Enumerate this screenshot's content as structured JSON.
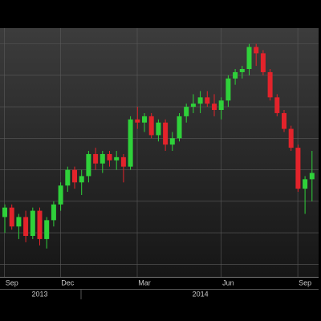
{
  "chart_data": {
    "type": "candlestick",
    "open": [
      25,
      28,
      22,
      25,
      19,
      27,
      18,
      24,
      29,
      35,
      40,
      36,
      38,
      45,
      42,
      45,
      43,
      44,
      41,
      56,
      55,
      57,
      51,
      55,
      48,
      50,
      57,
      60,
      61,
      63,
      61,
      59,
      62,
      69,
      71,
      72,
      79,
      77,
      71,
      63,
      58,
      53,
      47,
      34,
      37
    ],
    "high": [
      29,
      29,
      26,
      27,
      28,
      28,
      25,
      30,
      36,
      41,
      41,
      40,
      46,
      47,
      46,
      46,
      46,
      45,
      57,
      60,
      58,
      58,
      56,
      56,
      52,
      58,
      61,
      64,
      65,
      65,
      64,
      63,
      70,
      72,
      73,
      80,
      80,
      78,
      72,
      64,
      59,
      54,
      48,
      38,
      46
    ],
    "low": [
      20,
      21,
      18,
      17,
      18,
      16,
      15,
      22,
      27,
      33,
      34,
      32,
      36,
      40,
      39,
      41,
      40,
      36,
      40,
      53,
      52,
      50,
      49,
      46,
      46,
      49,
      55,
      58,
      58,
      60,
      57,
      56,
      60,
      67,
      69,
      70,
      73,
      70,
      62,
      57,
      52,
      46,
      33,
      26,
      30
    ],
    "close": [
      28,
      22,
      25,
      19,
      27,
      18,
      24,
      29,
      35,
      40,
      36,
      38,
      45,
      42,
      45,
      43,
      44,
      41,
      56,
      55,
      57,
      51,
      55,
      48,
      50,
      57,
      60,
      61,
      63,
      61,
      59,
      62,
      69,
      71,
      72,
      79,
      77,
      71,
      63,
      58,
      53,
      47,
      34,
      37,
      39
    ],
    "up_color": "#2fd13a",
    "down_color": "#e3232b",
    "ylim": [
      6,
      85
    ],
    "yticks": [
      10,
      20,
      30,
      40,
      50,
      60,
      70,
      80
    ],
    "grid": true,
    "tick_labels": false,
    "x_labels": [
      {
        "label": "Sep",
        "index": 1
      },
      {
        "label": "Dec",
        "index": 9
      },
      {
        "label": "Mar",
        "index": 20
      },
      {
        "label": "Jun",
        "index": 32
      },
      {
        "label": "Sep",
        "index": 43
      }
    ],
    "year_labels": [
      {
        "label": "2013",
        "index": 5
      },
      {
        "label": "2014",
        "index": 28
      }
    ]
  }
}
